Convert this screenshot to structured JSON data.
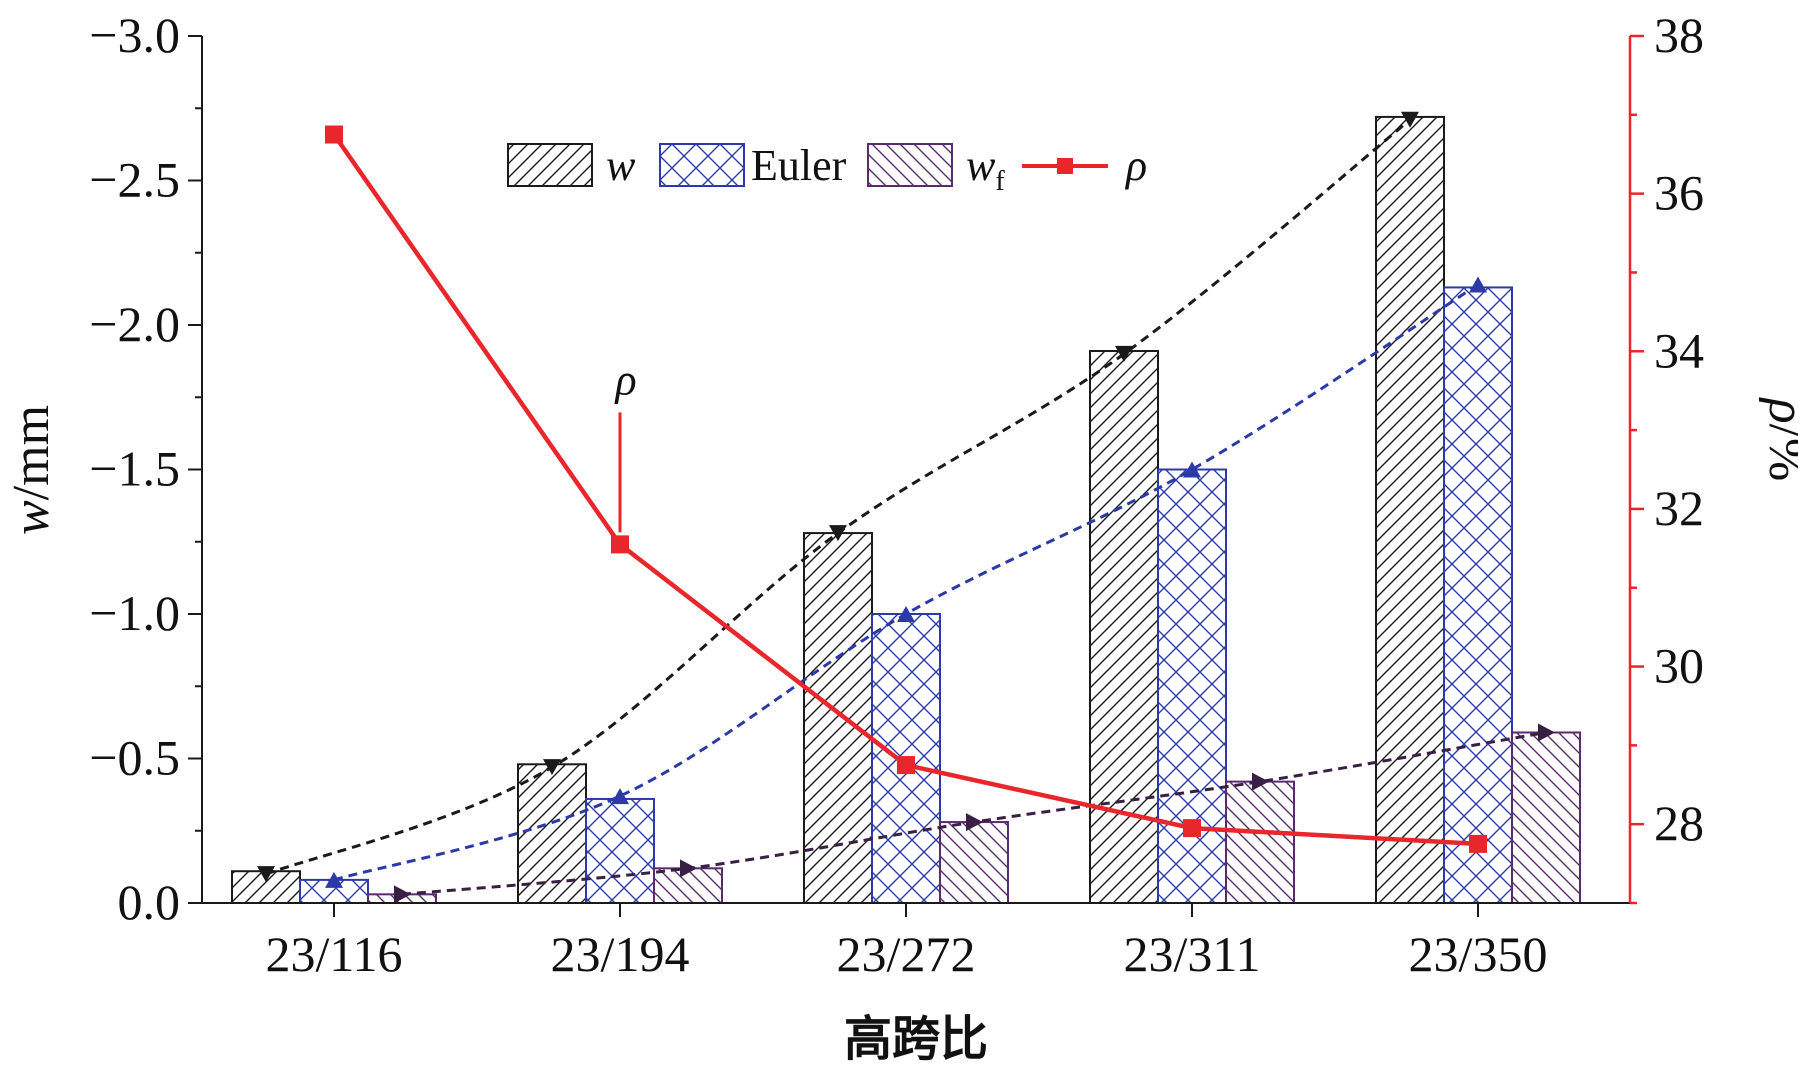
{
  "chart_data": {
    "type": "bar",
    "categories": [
      "23/116",
      "23/194",
      "23/272",
      "23/311",
      "23/350"
    ],
    "xlabel": "高跨比",
    "ylabel_left": {
      "italic": "w",
      "rest": "/mm"
    },
    "ylabel_right": {
      "italic": "ρ",
      "rest": "/%"
    },
    "ylim_left": [
      0,
      -3.0
    ],
    "ylim_right": [
      27,
      38
    ],
    "y_ticks_left": [
      "0.0",
      "−0.5",
      "−1.0",
      "−1.5",
      "−2.0",
      "−2.5",
      "−3.0"
    ],
    "y_ticks_right": [
      "28",
      "30",
      "32",
      "34",
      "36",
      "38"
    ],
    "series": [
      {
        "name": "w",
        "axis": "left",
        "kind": "bar",
        "pattern": "diagonal-right",
        "color": "#1a1a1a",
        "values": [
          -0.11,
          -0.48,
          -1.28,
          -1.91,
          -2.72
        ]
      },
      {
        "name": "Euler",
        "axis": "left",
        "kind": "bar",
        "pattern": "crosshatch",
        "color": "#2b3aa8",
        "values": [
          -0.08,
          -0.36,
          -1.0,
          -1.5,
          -2.13
        ]
      },
      {
        "name": "wf",
        "axis": "left",
        "kind": "bar",
        "pattern": "diagonal-left",
        "color": "#5a2a6e",
        "values": [
          -0.03,
          -0.12,
          -0.28,
          -0.42,
          -0.59
        ]
      },
      {
        "name": "ρ",
        "axis": "right",
        "kind": "line",
        "marker": "square",
        "color": "#e8262b",
        "values": [
          36.75,
          31.55,
          28.75,
          27.95,
          27.75
        ]
      }
    ],
    "trend_lines": [
      {
        "series": "w",
        "color": "#1a1a1a",
        "marker": "triangle-down",
        "values": [
          -0.1,
          -0.47,
          -1.28,
          -1.9,
          -2.71
        ]
      },
      {
        "series": "Euler",
        "color": "#2b3aa8",
        "marker": "triangle-up",
        "values": [
          -0.08,
          -0.37,
          -1.0,
          -1.5,
          -2.14
        ]
      },
      {
        "series": "wf",
        "color": "#3a1f44",
        "marker": "triangle-right",
        "values": [
          -0.03,
          -0.12,
          -0.28,
          -0.42,
          -0.59
        ]
      }
    ],
    "legend": {
      "position": "top-center",
      "entries": [
        {
          "label": "w",
          "italic": true
        },
        {
          "label": "Euler",
          "italic": false
        },
        {
          "label": "w",
          "italic": true,
          "subscript": "f"
        },
        {
          "label": "ρ",
          "italic": true
        }
      ]
    },
    "annotation": {
      "label": "ρ",
      "category": "23/194"
    },
    "grid": false
  }
}
